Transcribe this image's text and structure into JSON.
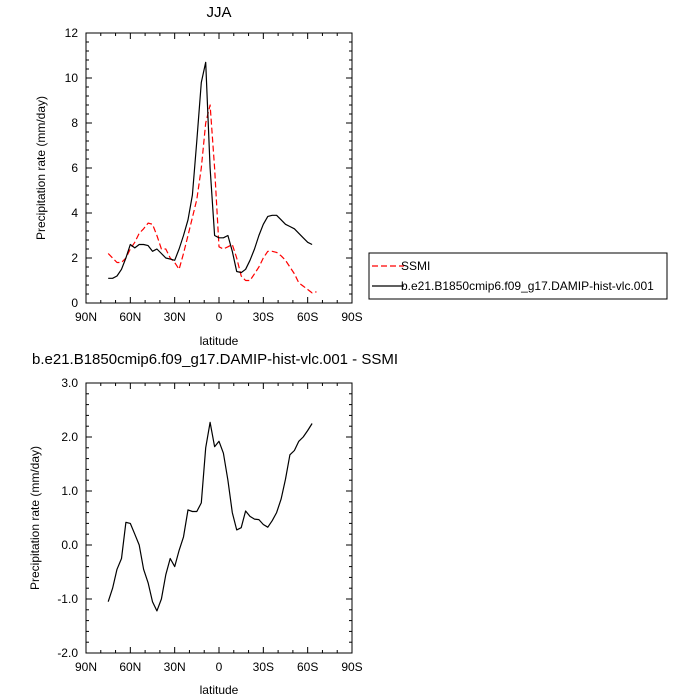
{
  "chart_data": [
    {
      "type": "line",
      "title": "JJA",
      "xlabel": "latitude",
      "ylabel": "Precipitation rate (mm/day)",
      "xlim": [
        90,
        -90
      ],
      "ylim": [
        0,
        12
      ],
      "xticks": [
        90,
        60,
        30,
        0,
        -30,
        -60,
        -90
      ],
      "xticklabels": [
        "90N",
        "60N",
        "30N",
        "0",
        "30S",
        "60S",
        "90S"
      ],
      "yticks": [
        0,
        2,
        4,
        6,
        8,
        10,
        12
      ],
      "yticklabels": [
        "0",
        "2",
        "4",
        "6",
        "8",
        "10",
        "12"
      ],
      "grid": false,
      "legend": "right",
      "series": [
        {
          "name": "SSMI",
          "color": "#ff0000",
          "dash": "dashed",
          "x": [
            75,
            72,
            69,
            66,
            63,
            60,
            57,
            54,
            51,
            48,
            45,
            42,
            39,
            36,
            33,
            30,
            27,
            24,
            21,
            18,
            15,
            12,
            9,
            6,
            3,
            0,
            -3,
            -6,
            -9,
            -12,
            -15,
            -18,
            -21,
            -24,
            -27,
            -30,
            -33,
            -36,
            -39,
            -42,
            -45,
            -48,
            -51,
            -54,
            -57,
            -60,
            -63,
            -66
          ],
          "y": [
            2.2,
            2.0,
            1.8,
            1.8,
            2.0,
            2.4,
            2.7,
            3.1,
            3.3,
            3.55,
            3.5,
            3.0,
            2.4,
            2.4,
            2.0,
            1.8,
            1.5,
            2.2,
            3.0,
            3.8,
            4.6,
            6.0,
            8.0,
            8.8,
            6.0,
            2.5,
            2.4,
            2.5,
            2.6,
            2.0,
            1.2,
            1.0,
            1.0,
            1.3,
            1.6,
            2.0,
            2.3,
            2.3,
            2.25,
            2.1,
            1.9,
            1.6,
            1.3,
            0.9,
            0.75,
            0.6,
            0.45,
            0.5
          ]
        },
        {
          "name": "b.e21.B1850cmip6.f09_g17.DAMIP-hist-vlc.001",
          "color": "#000000",
          "dash": "solid",
          "x": [
            75,
            72,
            69,
            66,
            63,
            60,
            57,
            54,
            51,
            48,
            45,
            42,
            39,
            36,
            33,
            30,
            27,
            24,
            21,
            18,
            15,
            12,
            9,
            6,
            3,
            0,
            -3,
            -6,
            -9,
            -12,
            -15,
            -18,
            -21,
            -24,
            -27,
            -30,
            -33,
            -36,
            -39,
            -42,
            -45,
            -48,
            -51,
            -54,
            -57,
            -60,
            -63
          ],
          "y": [
            1.1,
            1.1,
            1.2,
            1.5,
            2.0,
            2.6,
            2.45,
            2.6,
            2.6,
            2.55,
            2.3,
            2.4,
            2.2,
            2.0,
            1.95,
            1.9,
            2.4,
            3.0,
            3.7,
            4.8,
            7.2,
            9.8,
            10.7,
            6.0,
            3.0,
            2.9,
            2.9,
            3.0,
            2.3,
            1.4,
            1.35,
            1.5,
            1.9,
            2.4,
            3.0,
            3.5,
            3.85,
            3.9,
            3.9,
            3.7,
            3.5,
            3.4,
            3.3,
            3.1,
            2.9,
            2.7,
            2.6
          ]
        }
      ]
    },
    {
      "type": "line",
      "title": "b.e21.B1850cmip6.f09_g17.DAMIP-hist-vlc.001 - SSMI",
      "xlabel": "latitude",
      "ylabel": "Precipitation rate (mm/day)",
      "xlim": [
        90,
        -90
      ],
      "ylim": [
        -2,
        3
      ],
      "xticks": [
        90,
        60,
        30,
        0,
        -30,
        -60,
        -90
      ],
      "xticklabels": [
        "90N",
        "60N",
        "30N",
        "0",
        "30S",
        "60S",
        "90S"
      ],
      "yticks": [
        -2,
        -1,
        0,
        1,
        2,
        3
      ],
      "yticklabels": [
        "-2.0",
        "-1.0",
        "0.0",
        "1.0",
        "2.0",
        "3.0"
      ],
      "grid": false,
      "series": [
        {
          "color": "#000000",
          "dash": "solid",
          "x": [
            75,
            72,
            69,
            66,
            63,
            60,
            57,
            54,
            51,
            48,
            45,
            42,
            39,
            36,
            33,
            30,
            27,
            24,
            21,
            18,
            15,
            12,
            9,
            6,
            3,
            0,
            -3,
            -6,
            -9,
            -12,
            -15,
            -18,
            -21,
            -24,
            -27,
            -30,
            -33,
            -36,
            -39,
            -42,
            -45,
            -48,
            -51,
            -54,
            -57,
            -60,
            -63
          ],
          "y": [
            -1.05,
            -0.8,
            -0.45,
            -0.25,
            0.42,
            0.4,
            0.2,
            0.0,
            -0.45,
            -0.7,
            -1.05,
            -1.22,
            -1.0,
            -0.55,
            -0.25,
            -0.4,
            -0.1,
            0.15,
            0.65,
            0.62,
            0.62,
            0.78,
            1.8,
            2.27,
            1.82,
            1.92,
            1.7,
            1.2,
            0.6,
            0.28,
            0.32,
            0.63,
            0.53,
            0.48,
            0.47,
            0.38,
            0.33,
            0.45,
            0.6,
            0.85,
            1.22,
            1.67,
            1.75,
            1.92,
            2.0,
            2.12,
            2.25
          ]
        }
      ]
    }
  ]
}
